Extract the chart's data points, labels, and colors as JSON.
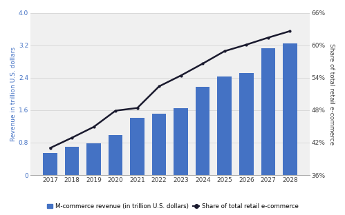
{
  "years": [
    2017,
    2018,
    2019,
    2020,
    2021,
    2022,
    2023,
    2024,
    2025,
    2026,
    2027,
    2028
  ],
  "revenue": [
    0.54,
    0.69,
    0.79,
    0.98,
    1.41,
    1.52,
    1.65,
    2.18,
    2.43,
    2.52,
    3.13,
    3.25
  ],
  "share": [
    41.0,
    42.9,
    44.9,
    47.9,
    48.4,
    52.4,
    54.4,
    56.6,
    58.9,
    60.1,
    61.4,
    62.6
  ],
  "bar_color": "#4472C4",
  "line_color": "#1a1a2e",
  "bg_color": "#f0f0f0",
  "left_ylabel": "Revenue in trillion U.S. dollars",
  "right_ylabel": "Share of total retail e-commerce",
  "left_ylim": [
    0,
    4
  ],
  "left_yticks": [
    0,
    0.8,
    1.6,
    2.4,
    3.2,
    4.0
  ],
  "right_ylim": [
    36,
    66
  ],
  "right_yticks": [
    36,
    42,
    48,
    54,
    60,
    66
  ],
  "right_yticklabels": [
    "36%",
    "42%",
    "48%",
    "54%",
    "60%",
    "66%"
  ],
  "legend_bar_label": "M-commerce revenue (in trillion U.S. dollars)",
  "legend_line_label": "Share of total retail e-commerce",
  "grid_color": "#d0d0d0"
}
